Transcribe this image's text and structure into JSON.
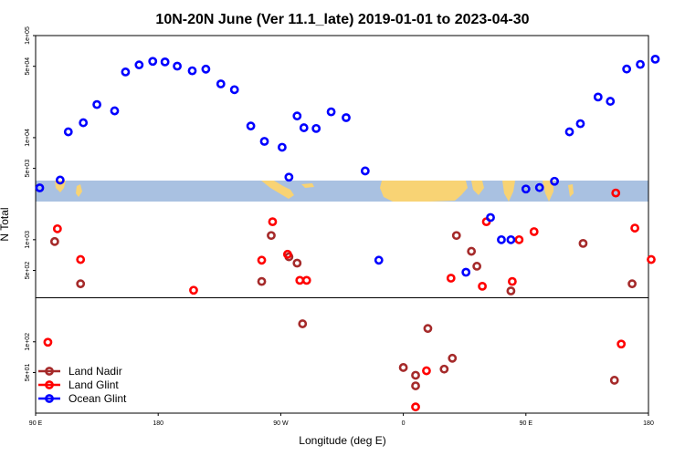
{
  "chart_data": {
    "type": "scatter",
    "title": "10N-20N June (Ver 11.1_late)   2019-01-01 to 2023-04-30",
    "xlabel": "Longitude (deg E)",
    "ylabel": "N Total",
    "x_ticks": [
      {
        "value": 90,
        "label": "90 E"
      },
      {
        "value": 180,
        "label": "180"
      },
      {
        "value": 270,
        "label": "90 W"
      },
      {
        "value": 360,
        "label": "0"
      },
      {
        "value": 450,
        "label": "90 E"
      },
      {
        "value": 540,
        "label": "180"
      }
    ],
    "y_ticks": [
      {
        "value": 50,
        "label": "5e+01"
      },
      {
        "value": 100,
        "label": "1e+02"
      },
      {
        "value": 500,
        "label": "5e+02"
      },
      {
        "value": 1000,
        "label": "1e+03"
      },
      {
        "value": 5000,
        "label": "5e+03"
      },
      {
        "value": 10000,
        "label": "1e+04"
      },
      {
        "value": 50000,
        "label": "5e+04"
      },
      {
        "value": 100000,
        "label": "1e+05"
      }
    ],
    "xlim": [
      90,
      540
    ],
    "ylim": [
      20,
      100000
    ],
    "y_scale": "log",
    "reference_line_y": 270,
    "legend_position": "bottom-left",
    "series": [
      {
        "name": "Land Nadir",
        "color": "#a52a2a",
        "points": [
          [
            104,
            960
          ],
          [
            123,
            370
          ],
          [
            256,
            390
          ],
          [
            263,
            1100
          ],
          [
            276,
            680
          ],
          [
            282,
            590
          ],
          [
            286,
            150
          ],
          [
            360,
            56
          ],
          [
            369,
            37
          ],
          [
            369,
            47
          ],
          [
            378,
            135
          ],
          [
            390,
            54
          ],
          [
            396,
            69
          ],
          [
            399,
            1100
          ],
          [
            410,
            770
          ],
          [
            414,
            550
          ],
          [
            439,
            315
          ],
          [
            492,
            920
          ],
          [
            515,
            42
          ],
          [
            528,
            370
          ]
        ]
      },
      {
        "name": "Land Glint",
        "color": "#ff0000",
        "points": [
          [
            99,
            99
          ],
          [
            106,
            1280
          ],
          [
            123,
            640
          ],
          [
            206,
            320
          ],
          [
            256,
            630
          ],
          [
            264,
            1500
          ],
          [
            275,
            720
          ],
          [
            284,
            400
          ],
          [
            289,
            400
          ],
          [
            369,
            23
          ],
          [
            377,
            52
          ],
          [
            395,
            420
          ],
          [
            418,
            350
          ],
          [
            421,
            1500
          ],
          [
            440,
            390
          ],
          [
            445,
            1000
          ],
          [
            456,
            1200
          ],
          [
            516,
            2870
          ],
          [
            520,
            95
          ],
          [
            530,
            1300
          ],
          [
            542,
            640
          ]
        ]
      },
      {
        "name": "Ocean Glint",
        "color": "#0000ff",
        "points": [
          [
            93,
            3220
          ],
          [
            108,
            3840
          ],
          [
            114,
            11400
          ],
          [
            125,
            14000
          ],
          [
            135,
            21100
          ],
          [
            148,
            18300
          ],
          [
            156,
            44000
          ],
          [
            166,
            51600
          ],
          [
            176,
            55900
          ],
          [
            185,
            55200
          ],
          [
            194,
            50200
          ],
          [
            205,
            45200
          ],
          [
            215,
            46900
          ],
          [
            226,
            33600
          ],
          [
            236,
            29500
          ],
          [
            248,
            13000
          ],
          [
            258,
            9200
          ],
          [
            271,
            8050
          ],
          [
            276,
            4100
          ],
          [
            282,
            16300
          ],
          [
            287,
            12500
          ],
          [
            296,
            12300
          ],
          [
            307,
            17900
          ],
          [
            318,
            15700
          ],
          [
            332,
            4720
          ],
          [
            342,
            630
          ],
          [
            406,
            480
          ],
          [
            424,
            1650
          ],
          [
            432,
            1000
          ],
          [
            439,
            1000
          ],
          [
            450,
            3140
          ],
          [
            460,
            3240
          ],
          [
            471,
            3740
          ],
          [
            482,
            11400
          ],
          [
            490,
            13700
          ],
          [
            503,
            25000
          ],
          [
            512,
            22700
          ],
          [
            524,
            47000
          ],
          [
            534,
            52200
          ],
          [
            545,
            58700
          ]
        ]
      }
    ]
  }
}
